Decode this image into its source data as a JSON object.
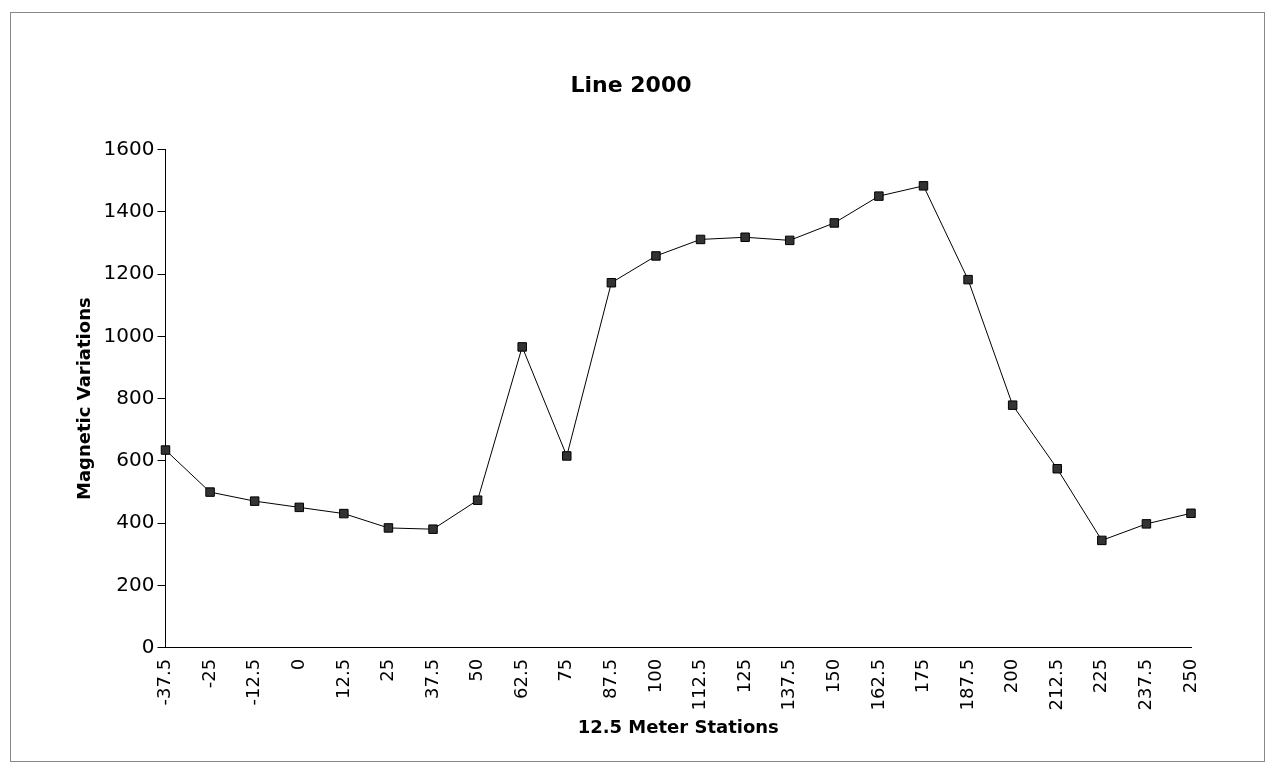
{
  "chart_data": {
    "type": "line",
    "title": "Line 2000",
    "xlabel": "12.5 Meter Stations",
    "ylabel": "Magnetic Variations",
    "categories": [
      "-37.5",
      "-25",
      "-12.5",
      "0",
      "12.5",
      "25",
      "37.5",
      "50",
      "62.5",
      "75",
      "87.5",
      "100",
      "112.5",
      "125",
      "137.5",
      "150",
      "162.5",
      "175",
      "187.5",
      "200",
      "212.5",
      "225",
      "237.5",
      "250"
    ],
    "series": [
      {
        "color": "#333333",
        "values": [
          635,
          500,
          471,
          451,
          431,
          385,
          381,
          474,
          966,
          616,
          1172,
          1258,
          1311,
          1318,
          1308,
          1364,
          1450,
          1483,
          1182,
          779,
          575,
          345,
          398,
          432
        ]
      }
    ],
    "ylim": [
      0,
      1600
    ],
    "yticks": [
      0,
      200,
      400,
      600,
      800,
      1000,
      1200,
      1400,
      1600
    ],
    "grid": false,
    "legend": false,
    "marker": "square",
    "line_style": "solid"
  }
}
